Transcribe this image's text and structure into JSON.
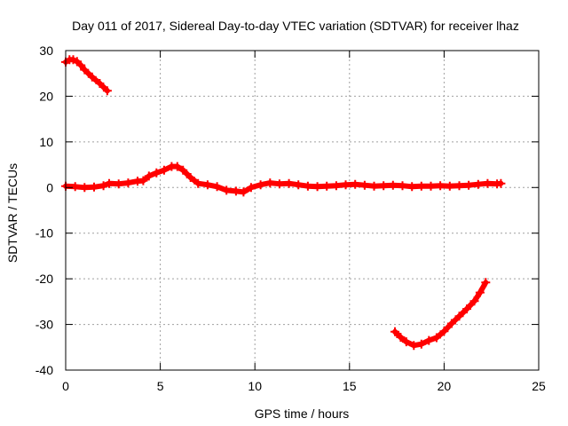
{
  "chart_data": {
    "type": "line",
    "title": "Day 011 of 2017, Sidereal Day-to-day VTEC variation (SDTVAR) for receiver lhaz",
    "xlabel": "GPS time / hours",
    "ylabel": "SDTVAR / TECUs",
    "xlim": [
      0,
      25
    ],
    "ylim": [
      -40,
      30
    ],
    "grid": true,
    "x_ticks": [
      "0",
      "5",
      "10",
      "15",
      "20",
      "25"
    ],
    "y_ticks": [
      "30",
      "20",
      "10",
      "0",
      "-10",
      "-20",
      "-30",
      "-40"
    ],
    "series_color": "#ff0000",
    "series": [
      {
        "name": "upper-segment",
        "points": [
          [
            0.0,
            27.5
          ],
          [
            0.2,
            28.0
          ],
          [
            0.4,
            28.0
          ],
          [
            0.6,
            27.6
          ],
          [
            0.8,
            26.8
          ],
          [
            1.0,
            25.8
          ],
          [
            1.4,
            24.2
          ],
          [
            1.8,
            22.8
          ],
          [
            2.2,
            21.2
          ]
        ]
      },
      {
        "name": "main-segment",
        "points": [
          [
            0.0,
            0.3
          ],
          [
            0.5,
            0.2
          ],
          [
            1.0,
            0.0
          ],
          [
            1.5,
            0.1
          ],
          [
            2.0,
            0.4
          ],
          [
            2.3,
            0.9
          ],
          [
            2.8,
            0.8
          ],
          [
            3.3,
            1.0
          ],
          [
            3.8,
            1.4
          ],
          [
            4.1,
            1.5
          ],
          [
            4.4,
            2.5
          ],
          [
            4.8,
            3.2
          ],
          [
            5.2,
            3.8
          ],
          [
            5.6,
            4.6
          ],
          [
            5.9,
            4.6
          ],
          [
            6.2,
            3.8
          ],
          [
            6.6,
            2.2
          ],
          [
            7.0,
            0.9
          ],
          [
            7.5,
            0.6
          ],
          [
            8.0,
            0.2
          ],
          [
            8.5,
            -0.6
          ],
          [
            9.0,
            -0.8
          ],
          [
            9.4,
            -1.0
          ],
          [
            9.8,
            0.0
          ],
          [
            10.3,
            0.6
          ],
          [
            10.8,
            1.0
          ],
          [
            11.3,
            0.8
          ],
          [
            11.8,
            0.9
          ],
          [
            12.3,
            0.6
          ],
          [
            12.8,
            0.3
          ],
          [
            13.3,
            0.2
          ],
          [
            13.8,
            0.3
          ],
          [
            14.3,
            0.4
          ],
          [
            14.8,
            0.6
          ],
          [
            15.3,
            0.7
          ],
          [
            15.8,
            0.5
          ],
          [
            16.3,
            0.3
          ],
          [
            16.8,
            0.4
          ],
          [
            17.3,
            0.5
          ],
          [
            17.8,
            0.4
          ],
          [
            18.3,
            0.2
          ],
          [
            18.8,
            0.3
          ],
          [
            19.3,
            0.3
          ],
          [
            19.8,
            0.4
          ],
          [
            20.3,
            0.3
          ],
          [
            20.8,
            0.4
          ],
          [
            21.3,
            0.5
          ],
          [
            21.8,
            0.7
          ],
          [
            22.3,
            0.9
          ],
          [
            22.8,
            0.8
          ],
          [
            23.0,
            0.9
          ]
        ]
      },
      {
        "name": "lower-segment",
        "points": [
          [
            17.4,
            -31.6
          ],
          [
            17.7,
            -32.8
          ],
          [
            18.0,
            -33.8
          ],
          [
            18.4,
            -34.6
          ],
          [
            18.8,
            -34.3
          ],
          [
            19.2,
            -33.5
          ],
          [
            19.6,
            -32.9
          ],
          [
            20.0,
            -31.5
          ],
          [
            20.4,
            -29.8
          ],
          [
            20.8,
            -28.2
          ],
          [
            21.2,
            -26.6
          ],
          [
            21.6,
            -24.9
          ],
          [
            21.9,
            -23.0
          ],
          [
            22.2,
            -20.8
          ]
        ]
      }
    ]
  }
}
